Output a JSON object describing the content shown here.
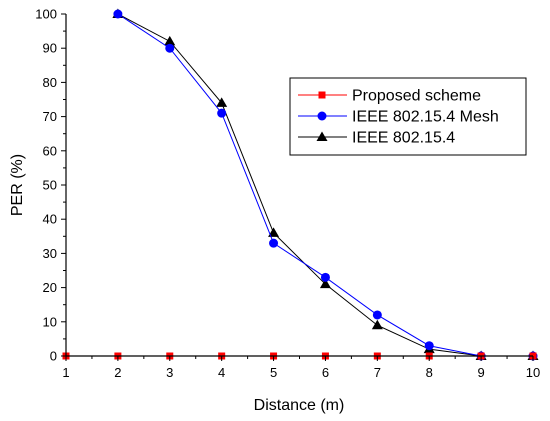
{
  "chart_data": {
    "type": "line",
    "title": "",
    "xlabel": "Distance (m)",
    "ylabel": "PER (%)",
    "xlim": [
      1,
      10
    ],
    "ylim": [
      0,
      100
    ],
    "x_ticks": [
      "1",
      "2",
      "3",
      "4",
      "5",
      "6",
      "7",
      "8",
      "9",
      "10"
    ],
    "y_ticks": [
      "0",
      "10",
      "20",
      "30",
      "40",
      "50",
      "60",
      "70",
      "80",
      "90",
      "100"
    ],
    "grid": false,
    "legend_position": "top-right",
    "series": [
      {
        "name": "Proposed scheme",
        "color": "#ff0000",
        "marker": "square",
        "x": [
          1,
          2,
          3,
          4,
          5,
          6,
          7,
          8,
          9,
          10
        ],
        "y": [
          0,
          0,
          0,
          0,
          0,
          0,
          0,
          0,
          0,
          0
        ]
      },
      {
        "name": "IEEE 802.15.4 Mesh",
        "color": "#0000ff",
        "marker": "circle",
        "x": [
          2,
          3,
          4,
          5,
          6,
          7,
          8,
          9,
          10
        ],
        "y": [
          100,
          90,
          71,
          33,
          23,
          12,
          3,
          0,
          0
        ]
      },
      {
        "name": "IEEE 802.15.4",
        "color": "#000000",
        "marker": "triangle",
        "x": [
          2,
          3,
          4,
          5,
          6,
          7,
          8,
          9,
          10
        ],
        "y": [
          100,
          92,
          74,
          36,
          21,
          9,
          2,
          0,
          0
        ]
      }
    ]
  }
}
